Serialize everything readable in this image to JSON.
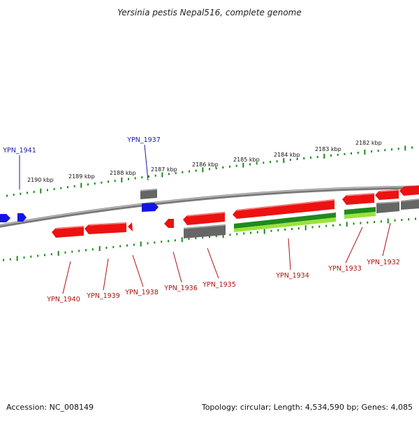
{
  "title": "Yersinia pestis Nepal516, complete genome",
  "footer": {
    "accession": "Accession: NC_008149",
    "summary": "Topology: circular; Length: 4,534,590 bp; Genes: 4,085"
  },
  "colors": {
    "forward_gene": "#0000ee",
    "reverse_gene": "#ee1111",
    "pseudo_gene": "#666666",
    "rna_dark": "#1f8a1f",
    "rna_light": "#9be23a",
    "scale_ticks": "#1a8a1a",
    "backbone": "#808080"
  },
  "scale_labels": [
    "2190 kbp",
    "2189 kbp",
    "2188 kbp",
    "2187 kbp",
    "2186 kbp",
    "2185 kbp",
    "2184 kbp",
    "2183 kbp",
    "2182 kbp"
  ],
  "gene_labels_forward": [
    "YPN_1941",
    "YPN_1937"
  ],
  "gene_labels_reverse": [
    "YPN_1940",
    "YPN_1939",
    "YPN_1938",
    "YPN_1936",
    "YPN_1935",
    "YPN_1934",
    "YPN_1933",
    "YPN_1932"
  ]
}
